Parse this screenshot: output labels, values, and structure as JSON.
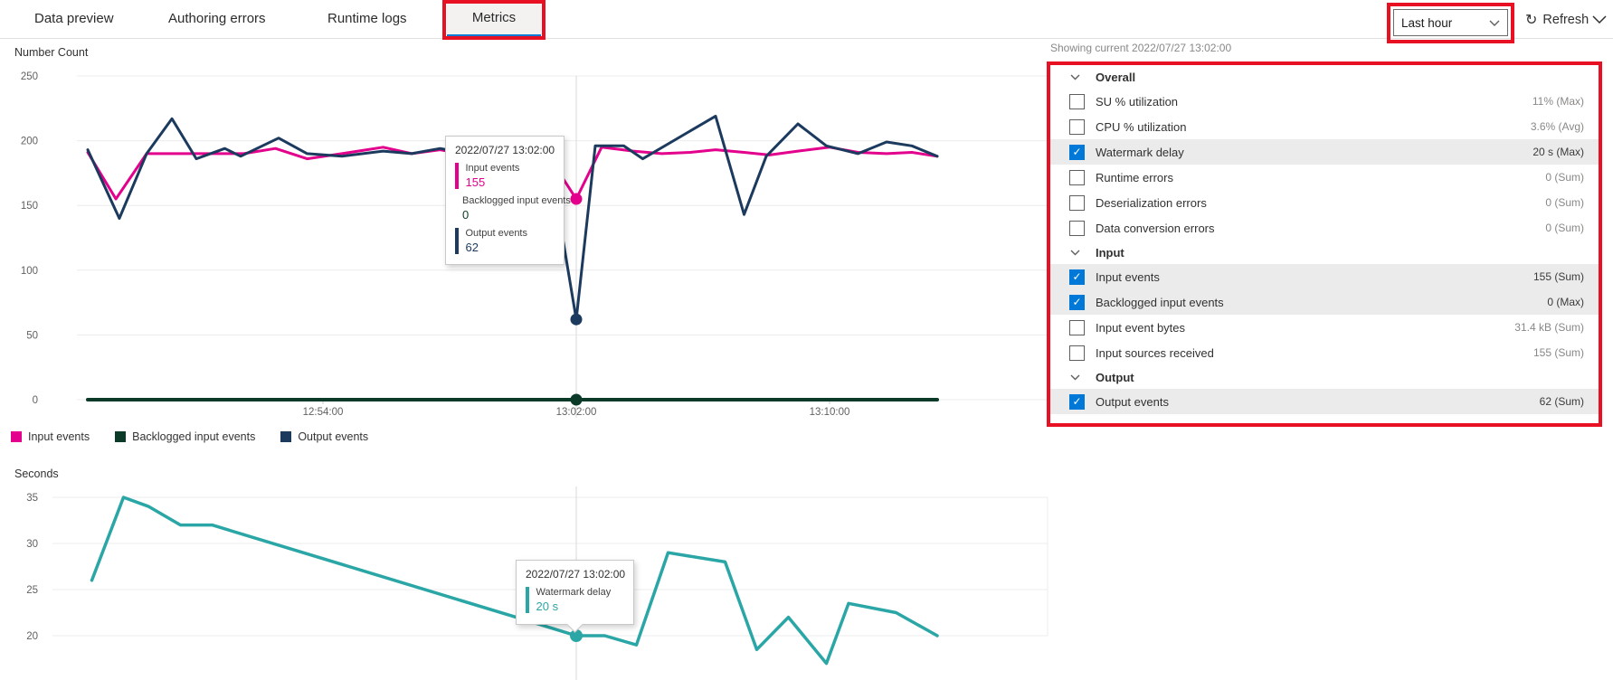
{
  "header": {
    "tabs": [
      {
        "label": "Data preview",
        "active": false
      },
      {
        "label": "Authoring errors",
        "active": false
      },
      {
        "label": "Runtime logs",
        "active": false
      },
      {
        "label": "Metrics",
        "active": true
      }
    ],
    "time_range_selected": "Last hour",
    "refresh_label": "Refresh"
  },
  "metrics_panel": {
    "showing_current": "Showing current 2022/07/27 13:02:00",
    "sections": [
      {
        "label": "Overall",
        "items": [
          {
            "label": "SU % utilization",
            "checked": false,
            "value": "11% (Max)"
          },
          {
            "label": "CPU % utilization",
            "checked": false,
            "value": "3.6% (Avg)"
          },
          {
            "label": "Watermark delay",
            "checked": true,
            "value": "20 s (Max)"
          },
          {
            "label": "Runtime errors",
            "checked": false,
            "value": "0 (Sum)"
          },
          {
            "label": "Deserialization errors",
            "checked": false,
            "value": "0 (Sum)"
          },
          {
            "label": "Data conversion errors",
            "checked": false,
            "value": "0 (Sum)"
          }
        ]
      },
      {
        "label": "Input",
        "items": [
          {
            "label": "Input events",
            "checked": true,
            "value": "155 (Sum)"
          },
          {
            "label": "Backlogged input events",
            "checked": true,
            "value": "0 (Max)"
          },
          {
            "label": "Input event bytes",
            "checked": false,
            "value": "31.4 kB (Sum)"
          },
          {
            "label": "Input sources received",
            "checked": false,
            "value": "155 (Sum)"
          }
        ]
      },
      {
        "label": "Output",
        "items": [
          {
            "label": "Output events",
            "checked": true,
            "value": "62 (Sum)"
          }
        ]
      }
    ]
  },
  "chart_data": [
    {
      "type": "line",
      "title": "Number Count",
      "ylabel": "Number Count",
      "ylim": [
        0,
        250
      ],
      "yticks": [
        0,
        50,
        100,
        150,
        200,
        250
      ],
      "grid": true,
      "legend_position": "bottom-left",
      "x_unit": "minutes after 12:46:00",
      "xticks": [
        {
          "t": 8,
          "label": "12:54:00"
        },
        {
          "t": 16,
          "label": "13:02:00"
        },
        {
          "t": 24,
          "label": "13:10:00"
        }
      ],
      "cursor_t": 16,
      "series": [
        {
          "name": "Input events",
          "color": "#e3008c",
          "width": 3,
          "marker_t": 16,
          "marker_value": 155,
          "points": [
            [
              0.57,
              191
            ],
            [
              1.46,
              155
            ],
            [
              2.43,
              190
            ],
            [
              4,
              190
            ],
            [
              5.5,
              190
            ],
            [
              6.5,
              194
            ],
            [
              7.5,
              186
            ],
            [
              8.6,
              190
            ],
            [
              9.9,
              195
            ],
            [
              10.8,
              190
            ],
            [
              11.7,
              193
            ],
            [
              12.6,
              189
            ],
            [
              13.4,
              192
            ],
            [
              14.3,
              193
            ],
            [
              15.1,
              189
            ],
            [
              16,
              155
            ],
            [
              16.8,
              195
            ],
            [
              17.8,
              192
            ],
            [
              18.7,
              190
            ],
            [
              19.6,
              191
            ],
            [
              20.4,
              193
            ],
            [
              21.3,
              191
            ],
            [
              22.1,
              189
            ],
            [
              23,
              192
            ],
            [
              24,
              195
            ],
            [
              24.9,
              191
            ],
            [
              25.8,
              190
            ],
            [
              26.6,
              191
            ],
            [
              27.4,
              188
            ]
          ]
        },
        {
          "name": "Backlogged input events",
          "color": "#0b3b28",
          "width": 4,
          "marker_t": 16,
          "marker_value": 0,
          "points": [
            [
              0.57,
              0
            ],
            [
              27.4,
              0
            ]
          ]
        },
        {
          "name": "Output events",
          "color": "#1b3a5e",
          "width": 3,
          "marker_t": 16,
          "marker_value": 62,
          "points": [
            [
              0.57,
              193
            ],
            [
              1.57,
              140
            ],
            [
              2.43,
              190
            ],
            [
              3.23,
              217
            ],
            [
              4,
              186
            ],
            [
              4.9,
              194
            ],
            [
              5.4,
              188
            ],
            [
              6.6,
              202
            ],
            [
              7.5,
              190
            ],
            [
              8.6,
              188
            ],
            [
              9.9,
              192
            ],
            [
              10.8,
              190
            ],
            [
              11.7,
              194
            ],
            [
              12.6,
              190
            ],
            [
              13.4,
              192
            ],
            [
              14.3,
              190
            ],
            [
              15.1,
              194
            ],
            [
              16,
              62
            ],
            [
              16.6,
              196
            ],
            [
              17.5,
              196
            ],
            [
              18.1,
              186
            ],
            [
              20.4,
              219
            ],
            [
              21.3,
              143
            ],
            [
              22,
              188
            ],
            [
              23,
              213
            ],
            [
              23.9,
              196
            ],
            [
              24.9,
              190
            ],
            [
              25.8,
              199
            ],
            [
              26.6,
              196
            ],
            [
              27.4,
              188
            ]
          ]
        }
      ]
    },
    {
      "type": "line",
      "title": "Seconds",
      "ylabel": "Seconds",
      "ylim": [
        15,
        37
      ],
      "yticks": [
        20,
        25,
        30,
        35
      ],
      "grid": true,
      "x_unit": "minutes after 12:46:00",
      "xticks": [],
      "cursor_t": 16,
      "series": [
        {
          "name": "Watermark delay",
          "color": "#2ba6a6",
          "width": 3.5,
          "marker_t": 16,
          "marker_value": 20,
          "marker_r": 7,
          "points": [
            [
              0.7,
              26
            ],
            [
              1.7,
              35
            ],
            [
              2.5,
              34
            ],
            [
              3.5,
              32
            ],
            [
              4.5,
              32
            ],
            [
              14.1,
              22
            ],
            [
              16,
              20
            ],
            [
              16.9,
              20
            ],
            [
              17.9,
              19
            ],
            [
              18.9,
              29
            ],
            [
              20.7,
              28
            ],
            [
              21.7,
              18.5
            ],
            [
              22.7,
              22
            ],
            [
              23.9,
              17
            ],
            [
              24.6,
              23.5
            ],
            [
              26.1,
              22.5
            ],
            [
              27.4,
              20
            ]
          ]
        }
      ]
    }
  ],
  "tooltips": [
    {
      "timestamp": "2022/07/27 13:02:00",
      "items": [
        {
          "label": "Input events",
          "value": "155",
          "color": "#e3008c"
        },
        {
          "label": "Backlogged input events",
          "value": "0",
          "color": "#0b3b28"
        },
        {
          "label": "Output events",
          "value": "62",
          "color": "#1b3a5e"
        }
      ]
    },
    {
      "timestamp": "2022/07/27 13:02:00",
      "items": [
        {
          "label": "Watermark delay",
          "value": "20 s",
          "color": "#2ba6a6"
        }
      ]
    }
  ],
  "colors": {
    "accent_blue": "#0078d4",
    "checkbox_blue": "#0078d7",
    "annotation_red": "#e81123",
    "row_highlight": "#ebebeb",
    "input_events": "#e3008c",
    "backlogged_input_events": "#0b3b28",
    "output_events": "#1b3a5e",
    "watermark_delay": "#2ba6a6"
  }
}
